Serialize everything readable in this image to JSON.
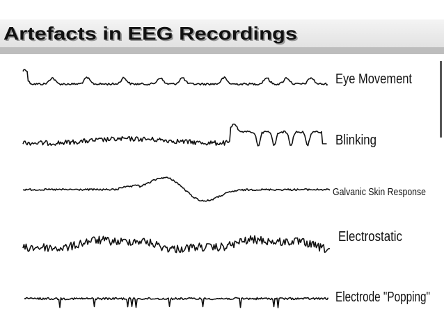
{
  "header": {
    "title": "Artefacts in EEG Recordings"
  },
  "traces": [
    {
      "label": "Eye Movement"
    },
    {
      "label": "Blinking"
    },
    {
      "label": "Galvanic Skin Response"
    },
    {
      "label": "Electrostatic"
    },
    {
      "label": "Electrode \"Popping\""
    }
  ]
}
